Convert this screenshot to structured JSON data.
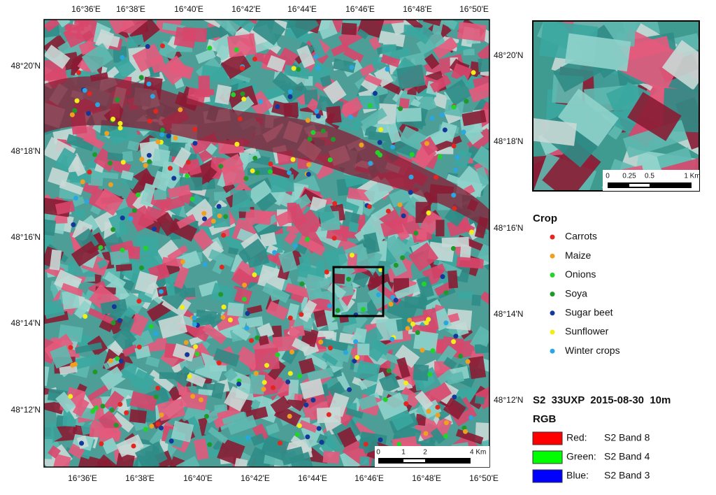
{
  "map": {
    "lon_labels_top": [
      "16°36'E",
      "16°38'E",
      "16°40'E",
      "16°42'E",
      "16°44'E",
      "16°46'E",
      "16°48'E",
      "16°50'E"
    ],
    "lon_labels_bottom": [
      "16°36'E",
      "16°38'E",
      "16°40'E",
      "16°42'E",
      "16°44'E",
      "16°46'E",
      "16°48'E",
      "16°50'E"
    ],
    "lat_labels_left": [
      "48°20'N",
      "48°18'N",
      "48°16'N",
      "48°14'N",
      "48°12'N"
    ],
    "lat_labels_right": [
      "48°20'N",
      "48°18'N",
      "48°16'N",
      "48°14'N",
      "48°12'N"
    ],
    "scale": [
      "0",
      "1",
      "2",
      "4 Km"
    ]
  },
  "inset": {
    "scale": [
      "0",
      "0.25",
      "0.5",
      "1 Km"
    ]
  },
  "legend": {
    "title": "Crop",
    "items": [
      {
        "label": "Carrots",
        "color": "#e3261e"
      },
      {
        "label": "Maize",
        "color": "#f0a020"
      },
      {
        "label": "Onions",
        "color": "#22d32a"
      },
      {
        "label": "Soya",
        "color": "#1f9a2a"
      },
      {
        "label": "Sugar beet",
        "color": "#14389a"
      },
      {
        "label": "Sunflower",
        "color": "#f2ee1a"
      },
      {
        "label": "Winter crops",
        "color": "#2aa6e0"
      }
    ]
  },
  "info": {
    "title": "S2  33UXP  2015-08-30  10m",
    "rgb_title": "RGB",
    "bands": [
      {
        "channel": "Red:",
        "band": "S2 Band 8",
        "color": "#ff0000"
      },
      {
        "channel": "Green:",
        "band": "S2 Band 4",
        "color": "#00ff00"
      },
      {
        "channel": "Blue:",
        "band": "S2 Band 3",
        "color": "#0000ff"
      }
    ]
  }
}
